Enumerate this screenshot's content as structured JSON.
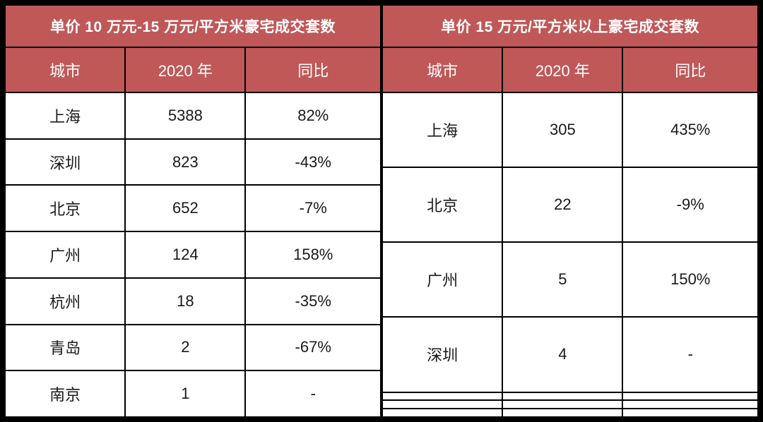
{
  "theme": {
    "header_bg": "#C05858",
    "header_text": "#FFFFFF",
    "body_bg": "#FFFFFF",
    "body_text": "#1A1A1A",
    "grid_color": "#000000"
  },
  "chart_data": [
    {
      "type": "table",
      "title": "单价 10 万元-15 万元/平方米豪宅成交套数",
      "columns": [
        "城市",
        "2020 年",
        "同比"
      ],
      "rows": [
        [
          "上海",
          "5388",
          "82%"
        ],
        [
          "深圳",
          "823",
          "-43%"
        ],
        [
          "北京",
          "652",
          "-7%"
        ],
        [
          "广州",
          "124",
          "158%"
        ],
        [
          "杭州",
          "18",
          "-35%"
        ],
        [
          "青岛",
          "2",
          "-67%"
        ],
        [
          "南京",
          "1",
          "-"
        ]
      ]
    },
    {
      "type": "table",
      "title": "单价 15 万元/平方米以上豪宅成交套数",
      "columns": [
        "城市",
        "2020 年",
        "同比"
      ],
      "rows": [
        [
          "上海",
          "305",
          "435%"
        ],
        [
          "北京",
          "22",
          "-9%"
        ],
        [
          "广州",
          "5",
          "150%"
        ],
        [
          "深圳",
          "4",
          "-"
        ],
        [
          "",
          "",
          ""
        ],
        [
          "",
          "",
          ""
        ],
        [
          "",
          "",
          ""
        ]
      ]
    }
  ]
}
